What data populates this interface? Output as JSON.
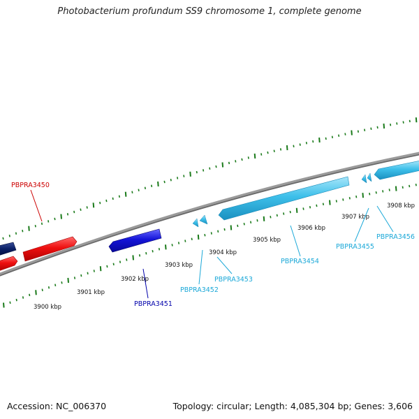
{
  "title": "Photobacterium profundum SS9 chromosome 1, complete genome",
  "footer": {
    "accession": "Accession: NC_006370",
    "summary": "Topology: circular; Length: 4,085,304 bp; Genes: 3,606"
  },
  "colors": {
    "backbone": "#777777",
    "ticks": "#1a7a1a",
    "red": "#e8121b",
    "navy": "#0a1f66",
    "blue": "#1414d8",
    "cyan": "#3ec0ea",
    "label_red": "#cc0000",
    "label_blue": "#0000aa",
    "label_cyan": "#1aa8d8"
  },
  "kbp_labels": [
    "3900 kbp",
    "3901 kbp",
    "3902 kbp",
    "3903 kbp",
    "3904 kbp",
    "3905 kbp",
    "3906 kbp",
    "3907 kbp",
    "3908 kbp"
  ],
  "genes": [
    {
      "name": "PBPRA3450",
      "color": "red"
    },
    {
      "name": "PBPRA3451",
      "color": "blue"
    },
    {
      "name": "PBPRA3452",
      "color": "cyan"
    },
    {
      "name": "PBPRA3453",
      "color": "cyan"
    },
    {
      "name": "PBPRA3454",
      "color": "cyan"
    },
    {
      "name": "PBPRA3455",
      "color": "cyan"
    },
    {
      "name": "PBPRA3456",
      "color": "cyan"
    }
  ]
}
